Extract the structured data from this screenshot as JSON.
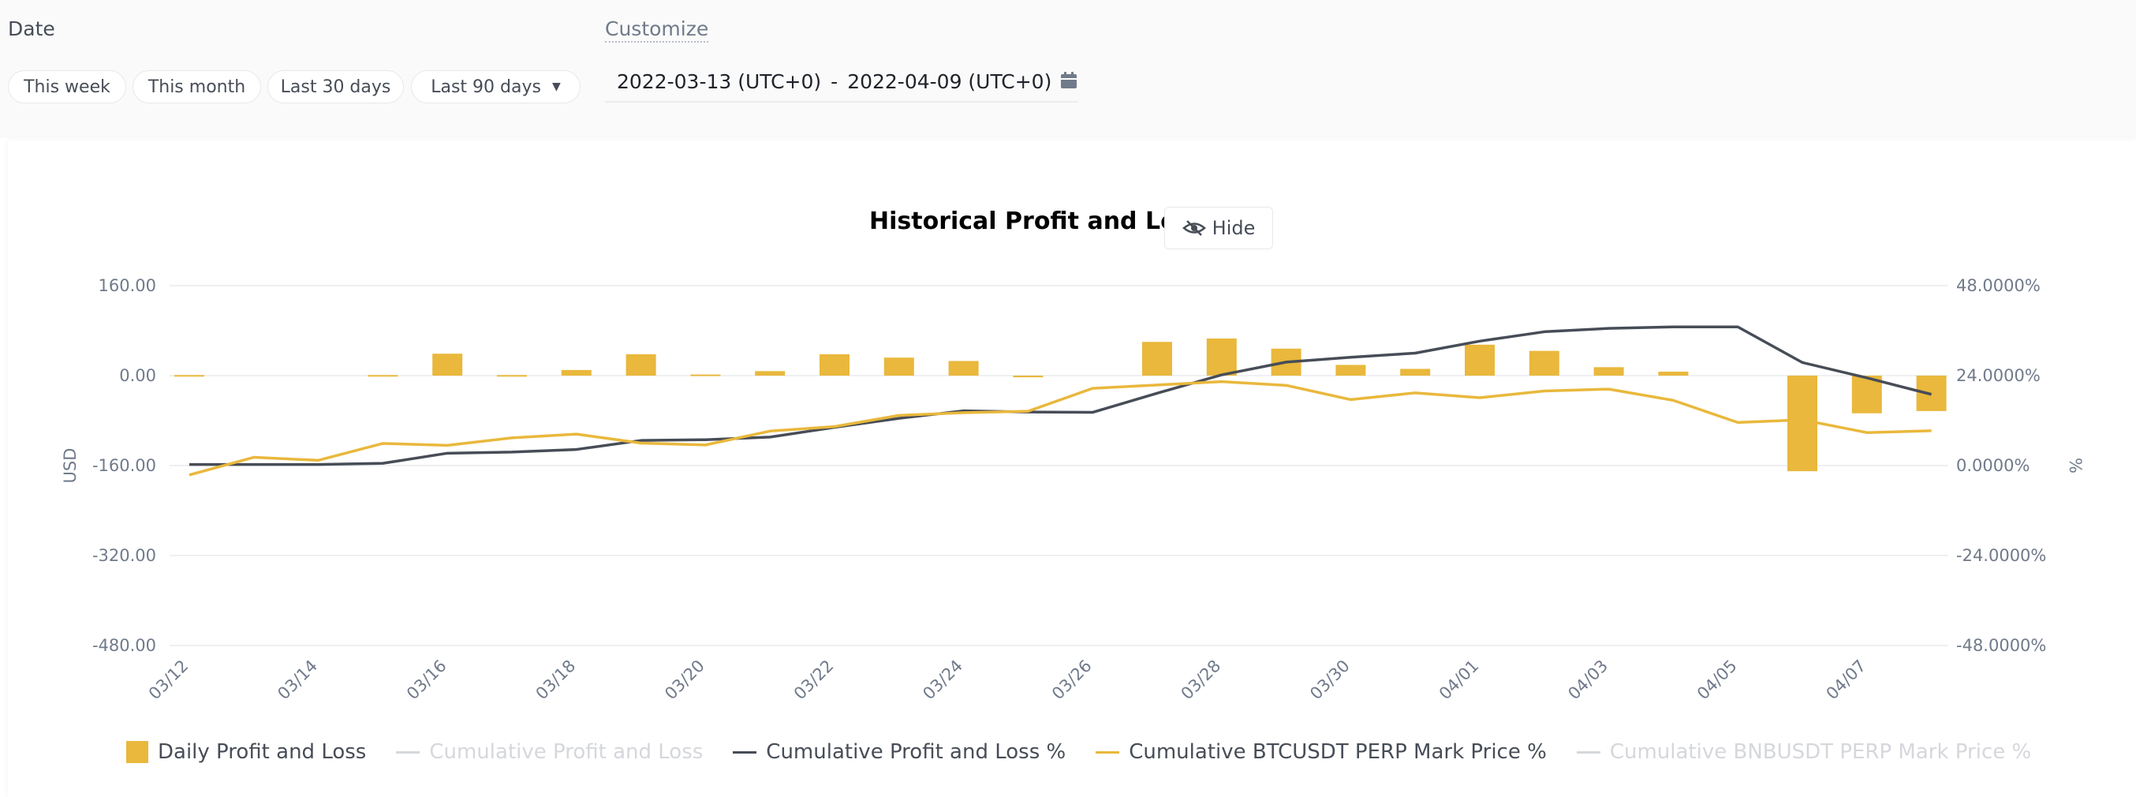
{
  "filters": {
    "date_label": "Date",
    "presets": [
      "This week",
      "This month",
      "Last 30 days",
      "Last 90 days"
    ],
    "customize_label": "Customize",
    "range_start": "2022-03-13 (UTC+0)",
    "range_sep": "-",
    "range_end": "2022-04-09 (UTC+0)"
  },
  "hide_label": "Hide",
  "colors": {
    "bar": "#e9b83c",
    "cum_pnl_pct": "#474d57",
    "btc": "#e9b83c",
    "disabled": "#d5d7db",
    "grid": "#eaecef"
  },
  "chart_data": {
    "type": "bar+line",
    "title": "Historical Profit and Loss",
    "ylabel_left": "USD",
    "ylabel_right": "%",
    "ylim_left": [
      -480,
      160
    ],
    "ylim_right": [
      -48,
      48
    ],
    "y_ticks_left": [
      "160.00",
      "0.00",
      "-160.00",
      "-320.00",
      "-480.00"
    ],
    "y_ticks_right": [
      "48.0000%",
      "24.0000%",
      "0.0000%",
      "-24.0000%",
      "-48.0000%"
    ],
    "x_ticks": [
      "03/12",
      "03/14",
      "03/16",
      "03/18",
      "03/20",
      "03/22",
      "03/24",
      "03/26",
      "03/28",
      "03/30",
      "04/01",
      "04/03",
      "04/05",
      "04/07"
    ],
    "dates": [
      "03/12",
      "03/13",
      "03/14",
      "03/15",
      "03/16",
      "03/17",
      "03/18",
      "03/19",
      "03/20",
      "03/21",
      "03/22",
      "03/23",
      "03/24",
      "03/25",
      "03/26",
      "03/27",
      "03/28",
      "03/29",
      "03/30",
      "03/31",
      "04/01",
      "04/02",
      "04/03",
      "04/04",
      "04/05",
      "04/06",
      "04/07",
      "04/08"
    ],
    "series": [
      {
        "name": "Daily Profit and Loss",
        "type": "bar",
        "axis": "left",
        "values": [
          1,
          0,
          0,
          1,
          39,
          1,
          10,
          38,
          2,
          8,
          38,
          32,
          26,
          -3,
          0,
          60,
          66,
          48,
          19,
          12,
          55,
          44,
          15,
          7,
          0,
          -170,
          -67,
          -63
        ]
      },
      {
        "name": "Cumulative Profit and Loss %",
        "type": "line",
        "axis": "right",
        "values": [
          0.3,
          0.3,
          0.3,
          0.6,
          3.3,
          3.6,
          4.3,
          6.7,
          6.9,
          7.6,
          10.2,
          12.6,
          14.6,
          14.3,
          14.2,
          19.3,
          24.2,
          27.6,
          28.9,
          30.0,
          33.2,
          35.7,
          36.6,
          37.0,
          37.0,
          27.5,
          23.4,
          19.0
        ]
      },
      {
        "name": "Cumulative BTCUSDT PERP Mark Price %",
        "type": "line",
        "axis": "right",
        "values": [
          -2.5,
          2.2,
          1.4,
          5.9,
          5.4,
          7.4,
          8.4,
          6.0,
          5.5,
          9.2,
          10.4,
          13.4,
          14.1,
          14.5,
          20.6,
          21.5,
          22.4,
          21.4,
          17.6,
          19.4,
          18.1,
          19.9,
          20.4,
          17.4,
          11.5,
          12.2,
          8.8,
          9.3
        ]
      }
    ],
    "legend": [
      {
        "name": "Daily Profit and Loss",
        "active": true
      },
      {
        "name": "Cumulative Profit and Loss",
        "active": false
      },
      {
        "name": "Cumulative Profit and Loss %",
        "active": true
      },
      {
        "name": "Cumulative BTCUSDT PERP Mark Price %",
        "active": true
      },
      {
        "name": "Cumulative BNBUSDT PERP Mark Price %",
        "active": false
      }
    ]
  }
}
